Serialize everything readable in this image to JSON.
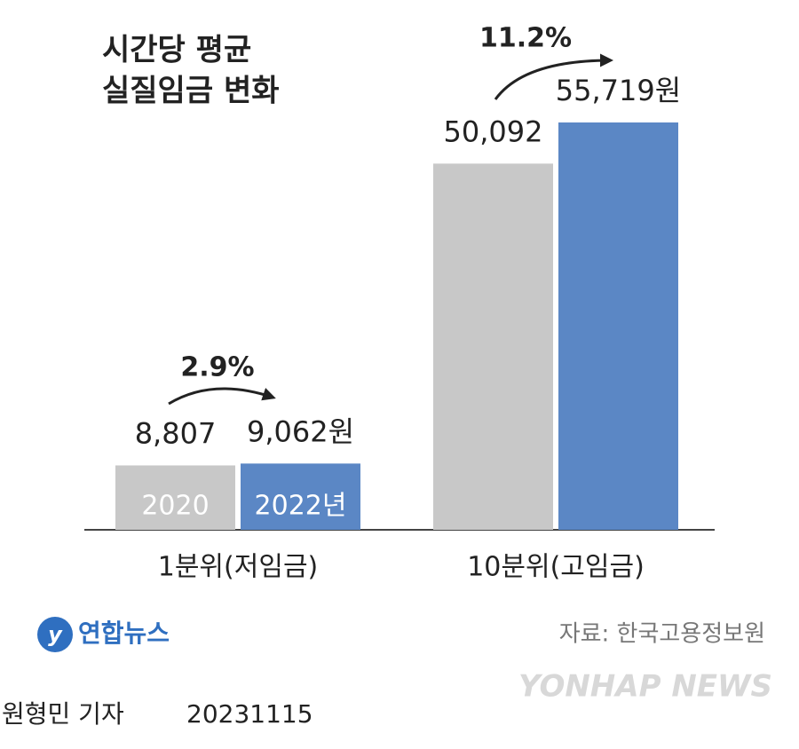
{
  "chart_data": {
    "type": "bar",
    "title": [
      "시간당 평균",
      "실질임금 변화"
    ],
    "categories": [
      "1분위(저임금)",
      "10분위(고임금)"
    ],
    "series": [
      {
        "name": "2020",
        "color": "#c8c8c8",
        "values": [
          8807,
          50092
        ],
        "value_labels": [
          "8,807",
          "50,092"
        ]
      },
      {
        "name": "2022년",
        "color": "#5b87c5",
        "values": [
          9062,
          55719
        ],
        "value_labels": [
          "9,062원",
          "55,719원"
        ]
      }
    ],
    "growth_labels": [
      "2.9%",
      "11.2%"
    ]
  },
  "footer": {
    "logo": "연합뉴스",
    "source": "자료: 한국고용정보원",
    "watermark": "YONHAP NEWS",
    "reporter": "원형민 기자",
    "date": "20231115"
  }
}
